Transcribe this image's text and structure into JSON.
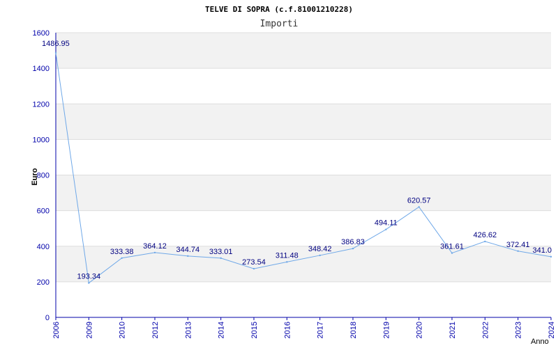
{
  "chart_data": {
    "type": "line",
    "title": "TELVE DI SOPRA (c.f.81001210228)",
    "subtitle": "Importi",
    "xlabel": "Anno",
    "ylabel": "Euro",
    "ylim": [
      0,
      1600
    ],
    "yticks": [
      0,
      200,
      400,
      600,
      800,
      1000,
      1200,
      1400,
      1600
    ],
    "categories": [
      "2006",
      "2009",
      "2010",
      "2012",
      "2013",
      "2014",
      "2015",
      "2016",
      "2017",
      "2018",
      "2019",
      "2020",
      "2021",
      "2022",
      "2023",
      "2024"
    ],
    "values": [
      1486.95,
      193.34,
      333.38,
      364.12,
      344.74,
      333.01,
      273.54,
      311.48,
      348.42,
      386.83,
      494.11,
      620.57,
      361.61,
      426.62,
      372.41,
      341.0
    ],
    "data_labels": [
      "1486.95",
      "193.34",
      "333.38",
      "364.12",
      "344.74",
      "333.01",
      "273.54",
      "311.48",
      "348.42",
      "386.83",
      "494.11",
      "620.57",
      "361.61",
      "426.62",
      "372.41",
      "341.0"
    ],
    "grid": true,
    "line_color": "#6fa8e8",
    "band_color": "#f2f2f2",
    "axis_color": "#0000aa"
  }
}
